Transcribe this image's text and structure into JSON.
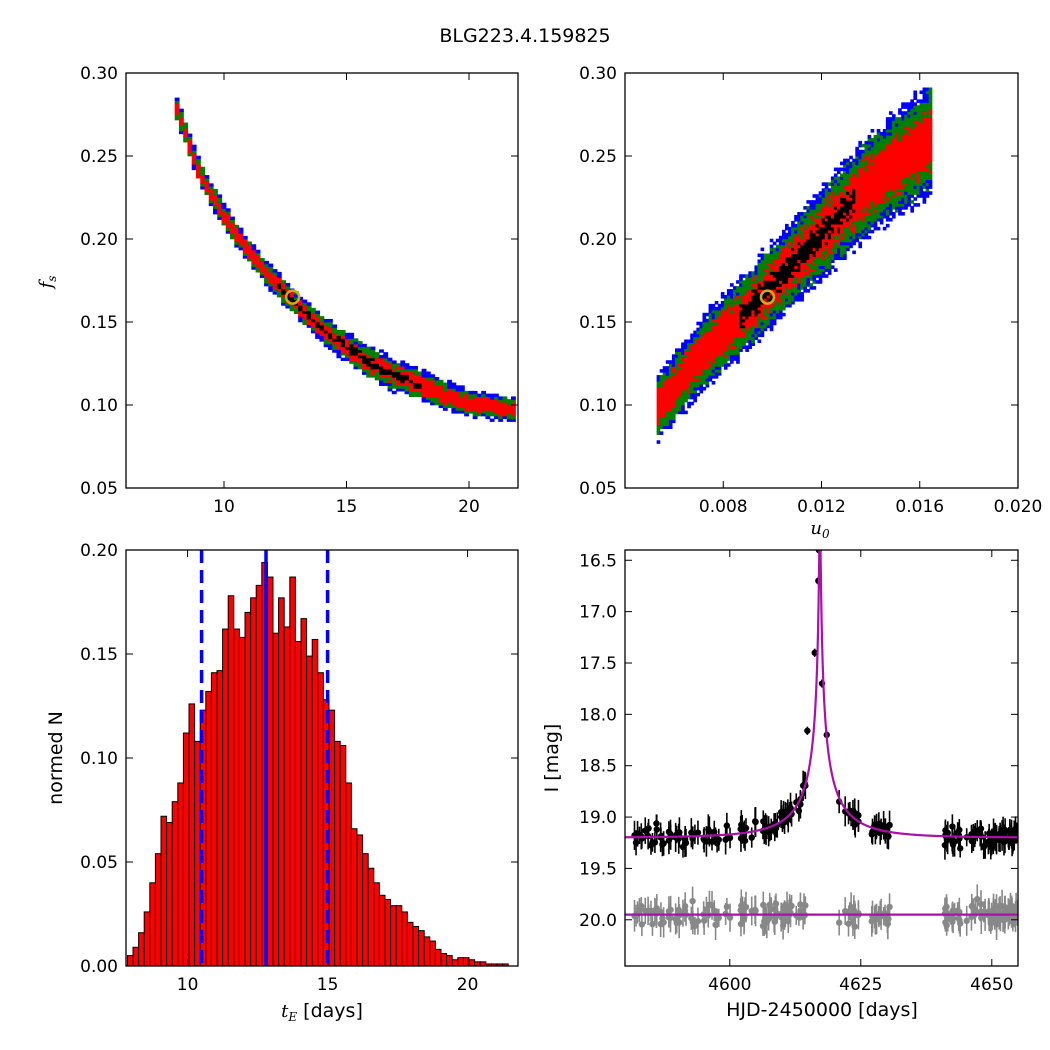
{
  "title": "BLG223.4.159825",
  "chart_data": [
    {
      "id": "tE_vs_fs",
      "type": "heatmap",
      "ylabel": "f",
      "ylabel_sub": "s",
      "xlim": [
        6,
        22
      ],
      "ylim": [
        0.05,
        0.3
      ],
      "xticks": [
        10,
        15,
        20
      ],
      "xticklabels": [
        "10",
        "15",
        "20"
      ],
      "yticks": [
        0.05,
        0.1,
        0.15,
        0.2,
        0.25,
        0.3
      ],
      "yticklabels": [
        "0.05",
        "0.10",
        "0.15",
        "0.20",
        "0.25",
        "0.30"
      ],
      "colors": {
        "level3": "#0000ff",
        "level2": "#008000",
        "level1": "#ff0000",
        "core": "#000000",
        "best": "#ccaa22"
      },
      "ridge": [
        [
          8.0,
          0.282
        ],
        [
          9.0,
          0.24
        ],
        [
          10.0,
          0.214
        ],
        [
          11.0,
          0.193
        ],
        [
          12.0,
          0.175
        ],
        [
          13.0,
          0.16
        ],
        [
          14.0,
          0.146
        ],
        [
          15.0,
          0.135
        ],
        [
          16.0,
          0.125
        ],
        [
          17.0,
          0.118
        ],
        [
          18.0,
          0.112
        ],
        [
          19.0,
          0.106
        ],
        [
          20.0,
          0.101
        ],
        [
          21.9,
          0.097
        ]
      ],
      "best_fit": {
        "x": 12.8,
        "y": 0.165
      }
    },
    {
      "id": "u0_vs_fs",
      "type": "heatmap",
      "xlabel": "u",
      "xlabel_sub": "0",
      "xlim": [
        0.004,
        0.02
      ],
      "ylim": [
        0.05,
        0.3
      ],
      "xticks": [
        0.008,
        0.012,
        0.016,
        0.02
      ],
      "xticklabels": [
        "0.008",
        "0.012",
        "0.016",
        "0.020"
      ],
      "yticks": [
        0.05,
        0.1,
        0.15,
        0.2,
        0.25,
        0.3
      ],
      "yticklabels": [
        "0.05",
        "0.10",
        "0.15",
        "0.20",
        "0.25",
        "0.30"
      ],
      "colors": {
        "level3": "#0000ff",
        "level2": "#008000",
        "level1": "#ff0000",
        "core": "#000000",
        "best": "#ccaa22"
      },
      "ridge": [
        [
          0.0053,
          0.098
        ],
        [
          0.006,
          0.11
        ],
        [
          0.007,
          0.128
        ],
        [
          0.008,
          0.143
        ],
        [
          0.009,
          0.157
        ],
        [
          0.01,
          0.172
        ],
        [
          0.011,
          0.188
        ],
        [
          0.012,
          0.203
        ],
        [
          0.013,
          0.218
        ],
        [
          0.014,
          0.233
        ],
        [
          0.015,
          0.245
        ],
        [
          0.016,
          0.255
        ],
        [
          0.0165,
          0.262
        ]
      ],
      "best_fit": {
        "x": 0.0098,
        "y": 0.165
      }
    },
    {
      "id": "tE_histogram",
      "type": "bar",
      "xlabel": "t",
      "xlabel_sub": "E",
      "xlabel_rest": " [days]",
      "ylabel": "normed N",
      "xlim": [
        7.8,
        21.8
      ],
      "ylim": [
        0.0,
        0.2
      ],
      "xticks": [
        10,
        15,
        20
      ],
      "xticklabels": [
        "10",
        "15",
        "20"
      ],
      "yticks": [
        0.0,
        0.05,
        0.1,
        0.15,
        0.2
      ],
      "yticklabels": [
        "0.00",
        "0.05",
        "0.10",
        "0.15",
        "0.20"
      ],
      "bar_start": 7.85,
      "bar_width": 0.2,
      "bar_color": "#ff0000",
      "values": [
        0.005,
        0.009,
        0.016,
        0.026,
        0.04,
        0.054,
        0.072,
        0.069,
        0.079,
        0.088,
        0.112,
        0.126,
        0.108,
        0.123,
        0.132,
        0.141,
        0.142,
        0.162,
        0.178,
        0.162,
        0.158,
        0.17,
        0.177,
        0.183,
        0.194,
        0.187,
        0.16,
        0.177,
        0.163,
        0.187,
        0.156,
        0.167,
        0.149,
        0.157,
        0.141,
        0.128,
        0.123,
        0.108,
        0.106,
        0.088,
        0.066,
        0.063,
        0.054,
        0.047,
        0.04,
        0.034,
        0.032,
        0.029,
        0.029,
        0.026,
        0.021,
        0.019,
        0.017,
        0.014,
        0.012,
        0.008,
        0.006,
        0.005,
        0.003,
        0.004,
        0.004,
        0.003,
        0.002,
        0.002,
        0.001,
        0.001,
        0.001,
        0.001,
        0.0
      ],
      "median": 12.8,
      "lower": 10.5,
      "upper": 15.0,
      "line_color": "#0000ff"
    },
    {
      "id": "light_curve",
      "type": "scatter",
      "xlabel": "HJD-2450000 [days]",
      "ylabel": "I [mag]",
      "xlim": [
        4580,
        4655
      ],
      "ylim": [
        20.45,
        16.4
      ],
      "xticks": [
        4600,
        4625,
        4650
      ],
      "xticklabels": [
        "4600",
        "4625",
        "4650"
      ],
      "yticks": [
        16.5,
        17.0,
        17.5,
        18.0,
        18.5,
        19.0,
        19.5,
        20.0
      ],
      "yticklabels": [
        "16.5",
        "17.0",
        "17.5",
        "18.0",
        "18.5",
        "19.0",
        "19.5",
        "20.0"
      ],
      "model_color": "#aa11aa",
      "baseline_mag": 19.2,
      "peak_time": 4617.2,
      "einstein_time": 12.8,
      "impact_u0": 0.0098,
      "source_flux_fraction": 0.165,
      "peak_points": [
        [
          4614.8,
          18.16
        ],
        [
          4616.2,
          17.4
        ],
        [
          4616.9,
          16.7
        ],
        [
          4617.0,
          16.4
        ],
        [
          4617.6,
          17.7
        ],
        [
          4618.5,
          18.2
        ]
      ],
      "residual_level": 19.95,
      "series": [
        {
          "name": "",
          "color": "#000000"
        },
        {
          "name": "",
          "color": "#888888"
        }
      ]
    }
  ]
}
